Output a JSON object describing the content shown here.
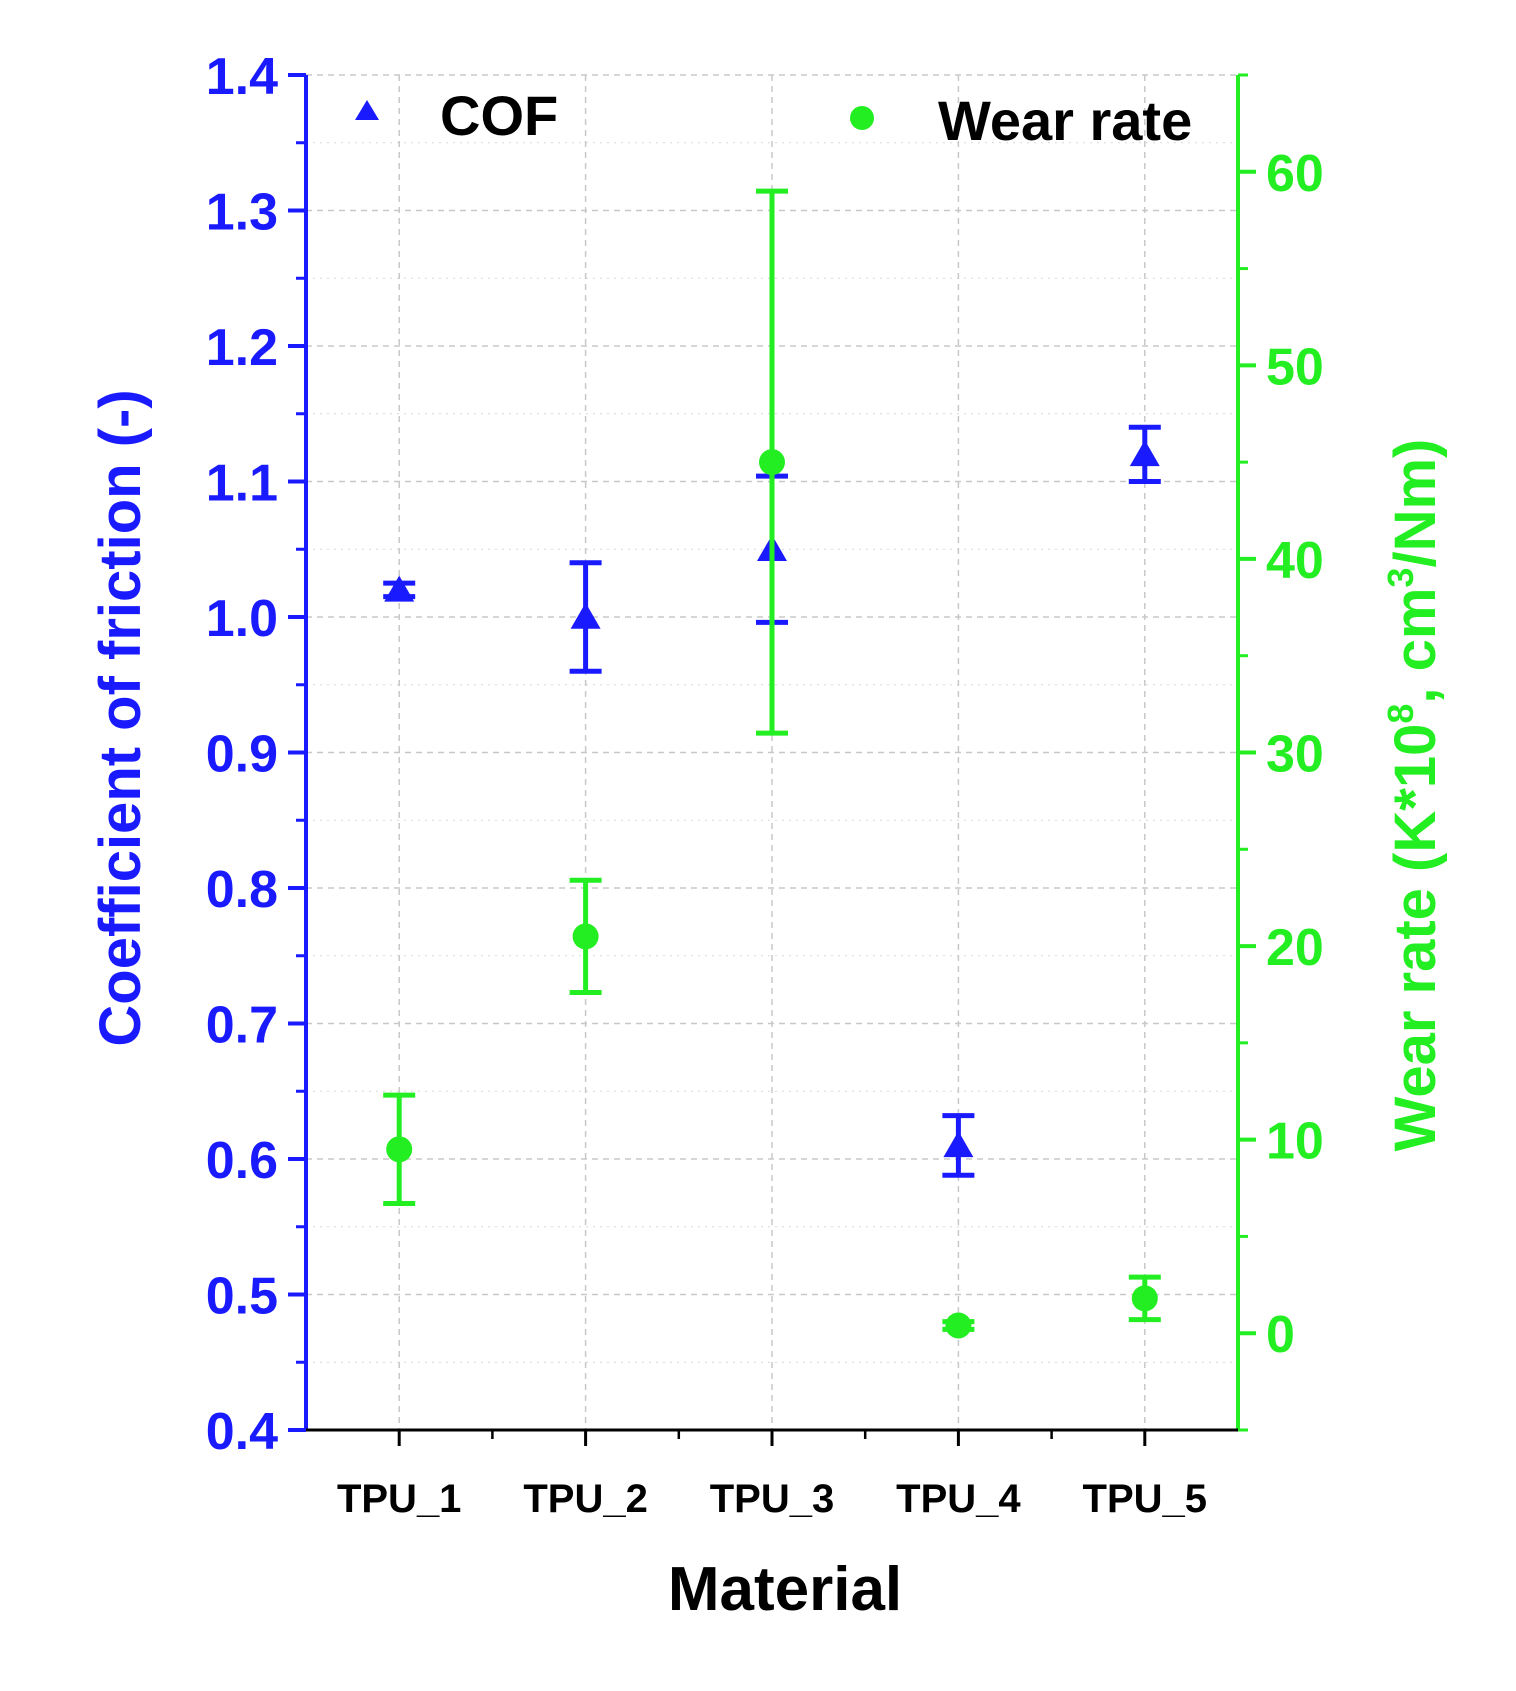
{
  "chart_data": {
    "type": "scatter",
    "categories": [
      "TPU_1",
      "TPU_2",
      "TPU_3",
      "TPU_4",
      "TPU_5"
    ],
    "xlabel": "Material",
    "series": [
      {
        "name": "COF",
        "axis": "left",
        "marker": "triangle",
        "color": "#1a1aff",
        "values": [
          1.02,
          1.0,
          1.05,
          0.61,
          1.12
        ],
        "error": [
          0.005,
          0.04,
          0.054,
          0.022,
          0.02
        ]
      },
      {
        "name": "Wear rate",
        "axis": "right",
        "marker": "circle",
        "color": "#22ee22",
        "values": [
          9.5,
          20.5,
          45.0,
          0.4,
          1.8
        ],
        "error": [
          2.8,
          2.9,
          14.0,
          0.2,
          1.1
        ]
      }
    ],
    "left_axis": {
      "label": "Coefficient of friction (-)",
      "range": [
        0.4,
        1.4
      ],
      "ticks": [
        "0.4",
        "0.5",
        "0.6",
        "0.7",
        "0.8",
        "0.9",
        "1.0",
        "1.1",
        "1.2",
        "1.3",
        "1.4"
      ],
      "color": "#1a1aff"
    },
    "right_axis": {
      "label_pre": "Wear rate (K*10",
      "label_sup1": "8",
      "label_mid": ", cm",
      "label_sup2": "3",
      "label_post": "/Nm)",
      "range": [
        -5,
        65
      ],
      "ticks": [
        "0",
        "10",
        "20",
        "30",
        "40",
        "50",
        "60"
      ],
      "color": "#22ee22"
    },
    "legend": {
      "position": "top",
      "entries": [
        "COF",
        "Wear rate"
      ]
    },
    "grid": true
  }
}
